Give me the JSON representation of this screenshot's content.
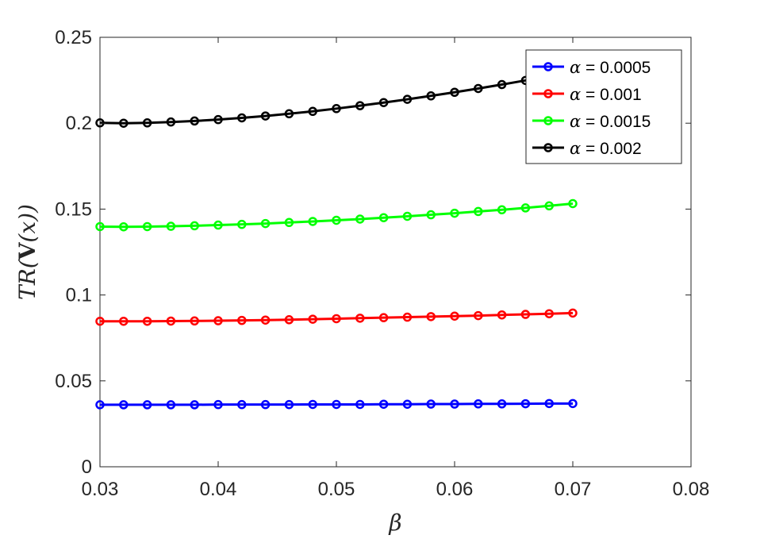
{
  "chart_data": {
    "type": "line",
    "xlabel": "β",
    "ylabel_parts": {
      "pre": "TR(",
      "bold": "V",
      "post": "(x))"
    },
    "xlim": [
      0.03,
      0.08
    ],
    "ylim": [
      0,
      0.25
    ],
    "xticks": [
      "0.03",
      "0.04",
      "0.05",
      "0.06",
      "0.07",
      "0.08"
    ],
    "yticks": [
      "0",
      "0.05",
      "0.1",
      "0.15",
      "0.2",
      "0.25"
    ],
    "legend_position": "top-right",
    "grid": false,
    "x": [
      0.03,
      0.032,
      0.034,
      0.036,
      0.038,
      0.04,
      0.042,
      0.044,
      0.046,
      0.048,
      0.05,
      0.052,
      0.054,
      0.056,
      0.058,
      0.06,
      0.062,
      0.064,
      0.066,
      0.068,
      0.07
    ],
    "series": [
      {
        "name": "α = 0.0005",
        "symbol": "α",
        "value_text": " = 0.0005",
        "color": "#0000ff",
        "values": [
          0.0361,
          0.0361,
          0.0361,
          0.0361,
          0.0361,
          0.0362,
          0.0362,
          0.0362,
          0.0362,
          0.0363,
          0.0363,
          0.0363,
          0.0364,
          0.0364,
          0.0365,
          0.0365,
          0.0366,
          0.0366,
          0.0367,
          0.0368,
          0.0368
        ]
      },
      {
        "name": "α = 0.001",
        "symbol": "α",
        "value_text": " = 0.001",
        "color": "#ff0000",
        "values": [
          0.0847,
          0.0847,
          0.0847,
          0.0848,
          0.0849,
          0.085,
          0.0852,
          0.0854,
          0.0856,
          0.0859,
          0.0862,
          0.0865,
          0.0868,
          0.0871,
          0.0874,
          0.0877,
          0.088,
          0.0884,
          0.0887,
          0.0891,
          0.0895
        ]
      },
      {
        "name": "α = 0.0015",
        "symbol": "α",
        "value_text": " = 0.0015",
        "color": "#00ff00",
        "values": [
          0.1398,
          0.1397,
          0.1398,
          0.14,
          0.1403,
          0.1407,
          0.1411,
          0.1416,
          0.1422,
          0.1428,
          0.1435,
          0.1442,
          0.145,
          0.1458,
          0.1467,
          0.1476,
          0.1486,
          0.1496,
          0.1507,
          0.1519,
          0.1532
        ]
      },
      {
        "name": "α = 0.002",
        "symbol": "α",
        "value_text": " = 0.002",
        "color": "#000000",
        "values": [
          0.2002,
          0.2,
          0.2002,
          0.2007,
          0.2013,
          0.2021,
          0.2031,
          0.2042,
          0.2055,
          0.2069,
          0.2085,
          0.2102,
          0.212,
          0.2139,
          0.2159,
          0.218,
          0.2202,
          0.2225,
          0.2249,
          0.2274,
          0.23
        ]
      }
    ]
  }
}
